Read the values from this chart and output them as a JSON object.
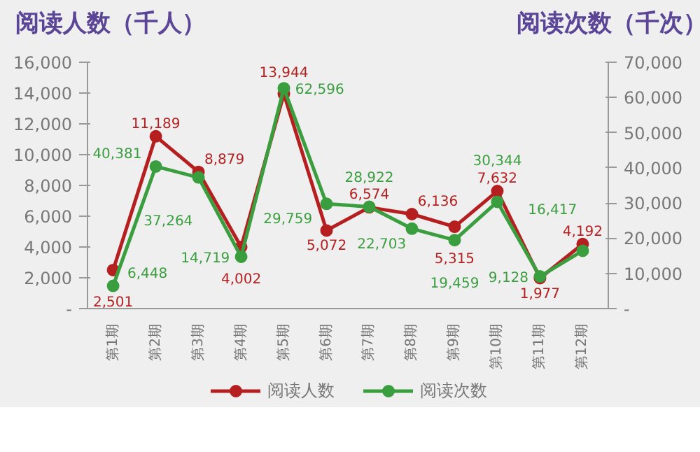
{
  "chart_data": {
    "type": "line",
    "ylabel": "阅读人数（千人）",
    "y2label": "阅读次数（千次）",
    "categories": [
      "第1期",
      "第2期",
      "第3期",
      "第4期",
      "第5期",
      "第6期",
      "第7期",
      "第8期",
      "第9期",
      "第10期",
      "第11期",
      "第12期"
    ],
    "series": [
      {
        "name": "阅读人数",
        "color": "#b51f1f",
        "values": [
          2501,
          11189,
          8879,
          4002,
          13944,
          5072,
          6574,
          6136,
          5315,
          7632,
          1977,
          4192
        ],
        "value_labels": [
          "2,501",
          "11,189",
          "8,879",
          "4,002",
          "13,944",
          "5,072",
          "6,574",
          "6,136",
          "5,315",
          "7,632",
          "1,977",
          "4,192"
        ]
      },
      {
        "name": "阅读次数",
        "color": "#3a9e3f",
        "axis": "y2",
        "values": [
          6448,
          40381,
          37264,
          14719,
          62596,
          29759,
          28922,
          22703,
          19459,
          30344,
          9128,
          16417
        ],
        "value_labels": [
          "6,448",
          "40,381",
          "37,264",
          "14,719",
          "62,596",
          "29,759",
          "28,922",
          "22,703",
          "19,459",
          "30,344",
          "9,128",
          "16,417"
        ]
      }
    ],
    "ylim": [
      0,
      16000
    ],
    "yticks": [
      {
        "value": 0,
        "label": "-"
      },
      {
        "value": 2000,
        "label": "2,000"
      },
      {
        "value": 4000,
        "label": "4,000"
      },
      {
        "value": 6000,
        "label": "6,000"
      },
      {
        "value": 8000,
        "label": "8,000"
      },
      {
        "value": 10000,
        "label": "10,000"
      },
      {
        "value": 12000,
        "label": "12,000"
      },
      {
        "value": 14000,
        "label": "14,000"
      },
      {
        "value": 16000,
        "label": "16,000"
      }
    ],
    "y2lim": [
      0,
      70000
    ],
    "y2ticks": [
      {
        "value": 0,
        "label": "-"
      },
      {
        "value": 10000,
        "label": "10,000"
      },
      {
        "value": 20000,
        "label": "20,000"
      },
      {
        "value": 30000,
        "label": "30,000"
      },
      {
        "value": 40000,
        "label": "40,000"
      },
      {
        "value": 50000,
        "label": "50,000"
      },
      {
        "value": 60000,
        "label": "60,000"
      },
      {
        "value": 70000,
        "label": "70,000"
      }
    ],
    "grid": false,
    "legend": "bottom",
    "marker": "circle",
    "line_style": "solid"
  }
}
